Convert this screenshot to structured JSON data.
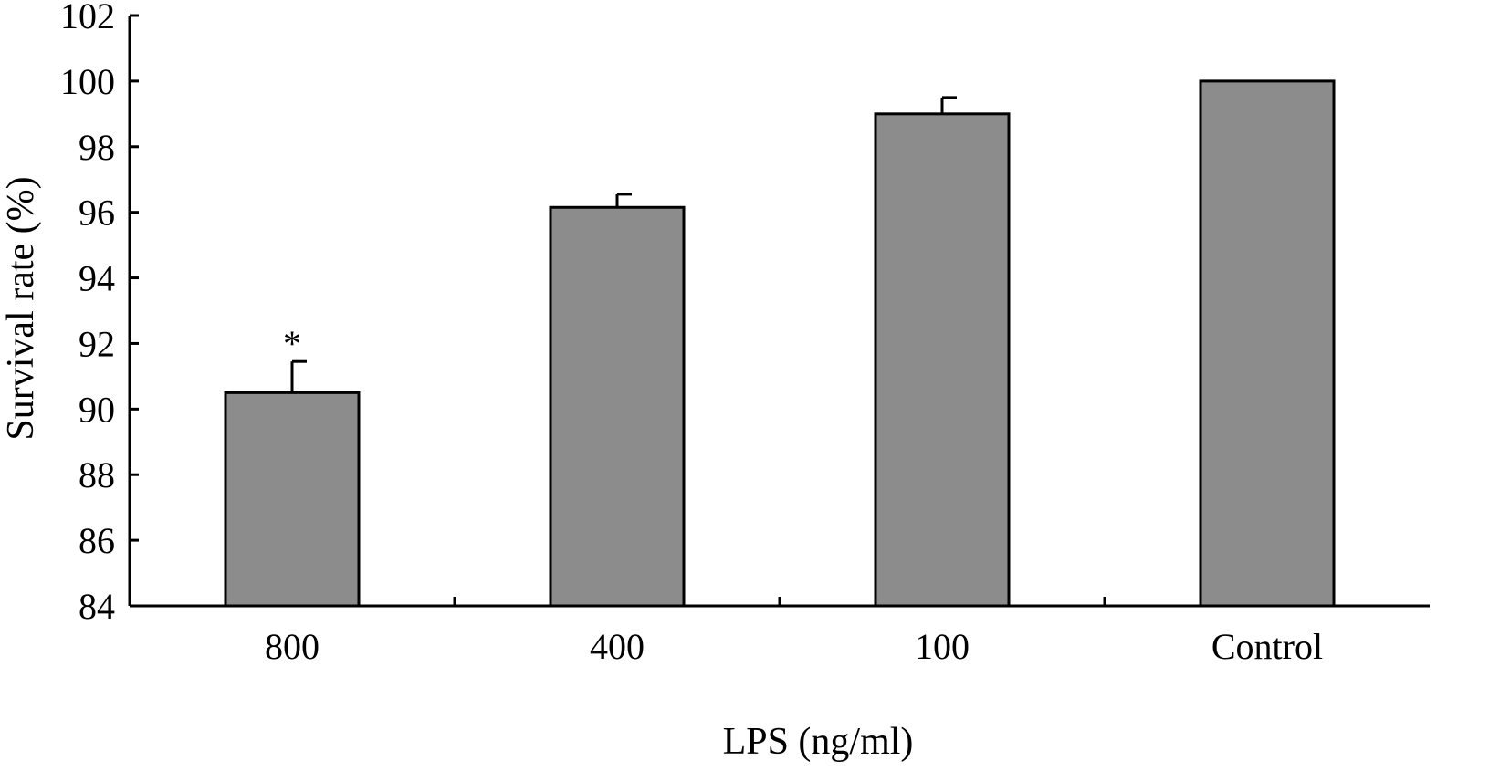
{
  "chart_data": {
    "type": "bar",
    "title": "",
    "xlabel": "LPS (ng/ml)",
    "ylabel": "Survival rate (%)",
    "categories": [
      "800",
      "400",
      "100",
      "Control"
    ],
    "series": [
      {
        "values": [
          90.5,
          96.15,
          99.0,
          100.0
        ],
        "error": [
          0.95,
          0.4,
          0.5,
          0
        ]
      }
    ],
    "ylim": [
      84,
      102
    ],
    "yticks": [
      84,
      86,
      88,
      90,
      92,
      94,
      96,
      98,
      100,
      102
    ],
    "ytick_labels": [
      "84",
      "86",
      "88",
      "90",
      "92",
      "94",
      "96",
      "98",
      "100",
      "102"
    ],
    "annotations": [
      {
        "category": "800",
        "text": "*"
      }
    ],
    "bar_color": "#8c8c8c",
    "grid": false,
    "legend": "none"
  }
}
